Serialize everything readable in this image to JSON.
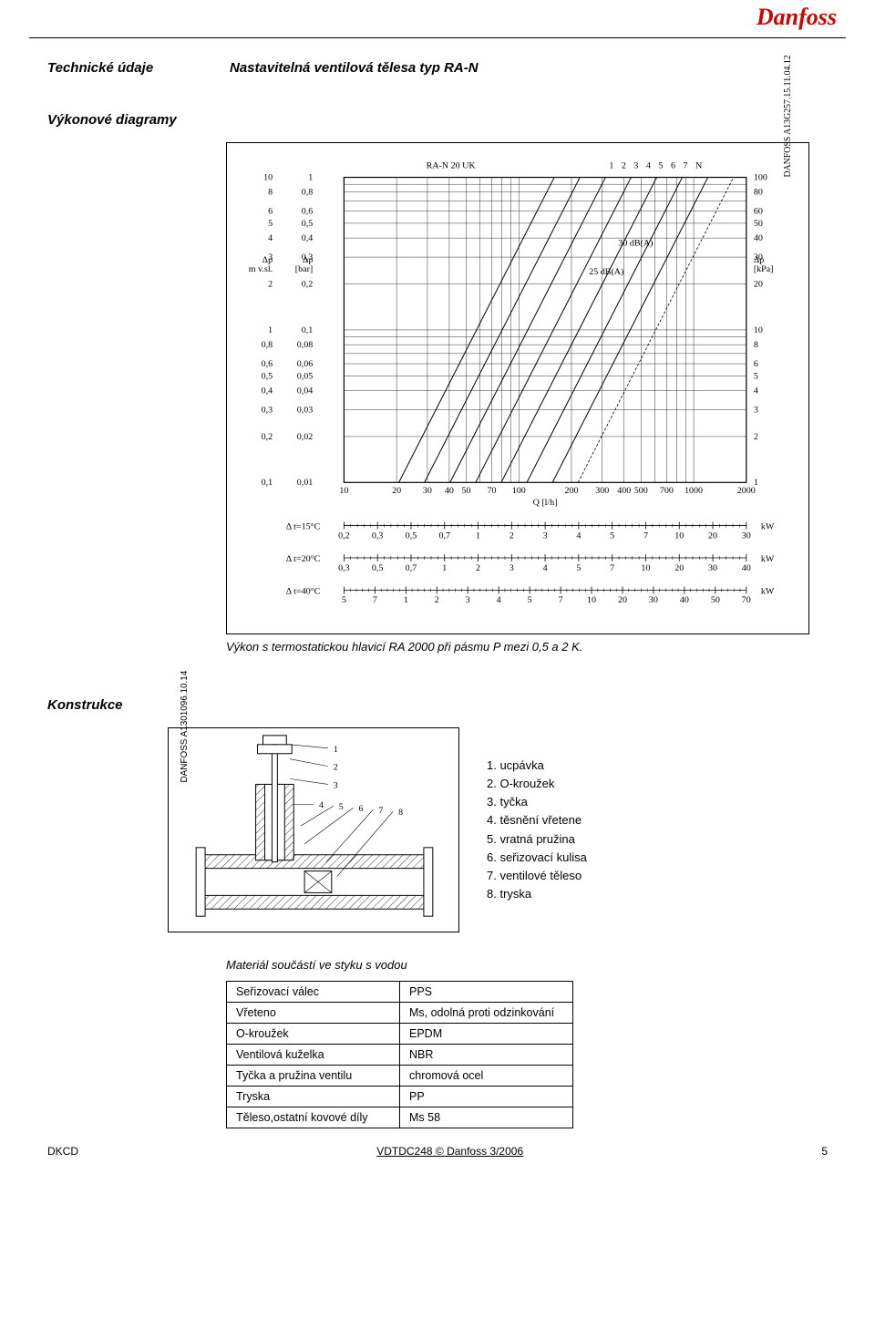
{
  "brand": "Danfoss",
  "header": {
    "left": "Technické údaje",
    "right": "Nastavitelná ventilová tělesa  typ RA-N"
  },
  "section1": {
    "title": "Výkonové diagramy",
    "caption": "Výkon s termostatickou hlavicí RA 2000 při pásmu P mezi 0,5 a 2 K."
  },
  "chart": {
    "ref_left": "DANFOSS\nA13G257.15.11.04.12",
    "title": "RA-N 20 UK",
    "top_scale_label": "1  2 3   4  5 6 7 N",
    "annotations": [
      "30 dB(A)",
      "25 dB(A)"
    ],
    "x_label": "Q  [l/h]",
    "y_labels": {
      "left_outer": "Δp\nm v.sl.",
      "left_inner": "Δp\n[bar]",
      "right": "Δp\n[kPa]"
    },
    "y_outer_ticks": [
      "10",
      "8",
      "6",
      "5",
      "4",
      "3",
      "2",
      "1",
      "0,8",
      "0,6",
      "0,5",
      "0,4",
      "0,3",
      "0,2",
      "0,1"
    ],
    "y_inner_ticks": [
      "1",
      "0,8",
      "0,6",
      "0,5",
      "0,4",
      "0,3",
      "0,2",
      "0,1",
      "0,08",
      "0,06",
      "0,05",
      "0,04",
      "0,03",
      "0,02",
      "0,01"
    ],
    "y_right_ticks": [
      "100",
      "80",
      "60",
      "50",
      "40",
      "30",
      "20",
      "10",
      "8",
      "6",
      "5",
      "4",
      "3",
      "2",
      "1"
    ],
    "x_ticks": [
      "10",
      "20",
      "30",
      "40",
      "50",
      "70",
      "100",
      "200",
      "300",
      "400",
      "500",
      "700",
      "1000",
      "2000"
    ],
    "rulers": [
      {
        "label": "Δ t=15°C",
        "ticks": [
          "0,2",
          "0,3",
          "0,5",
          "0,7",
          "1",
          "2",
          "3",
          "4",
          "5",
          "7",
          "10",
          "20",
          "30"
        ],
        "unit": "kW"
      },
      {
        "label": "Δ t=20°C",
        "ticks": [
          "0,3",
          "0,5",
          "0,7",
          "1",
          "2",
          "3",
          "4",
          "5",
          "7",
          "10",
          "20",
          "30",
          "40"
        ],
        "unit": "kW"
      },
      {
        "label": "Δ t=40°C",
        "ticks": [
          "5",
          "7",
          "1",
          "2",
          "3",
          "4",
          "5",
          "7",
          "10",
          "20",
          "30",
          "40",
          "50",
          "70"
        ],
        "unit": "kW"
      }
    ],
    "curve_count": 8,
    "line_color": "#000000"
  },
  "section2_title": "Konstrukce",
  "construction": {
    "ref": "DANFOSS\nA1301096.10.14",
    "callouts": [
      "1",
      "2",
      "3",
      "4",
      "5",
      "6",
      "7",
      "8"
    ],
    "legend": [
      "1.  ucpávka",
      "2.  O-kroužek",
      "3.  tyčka",
      "4.  těsnění vřetene",
      "5.  vratná pružina",
      "6.  seřizovací kulisa",
      "7.  ventilové těleso",
      "8.  tryska"
    ]
  },
  "materials": {
    "title": "Materiál součástí ve styku s vodou",
    "rows": [
      [
        "Seřizovací válec",
        "PPS"
      ],
      [
        "Vřeteno",
        "Ms, odolná proti odzinkování"
      ],
      [
        "O-kroužek",
        "EPDM"
      ],
      [
        "Ventilová kuželka",
        "NBR"
      ],
      [
        "Tyčka a pružina ventilu",
        "chromová ocel"
      ],
      [
        "Tryska",
        "PP"
      ],
      [
        "Těleso,ostatní kovové díly",
        "Ms 58"
      ]
    ]
  },
  "footer": {
    "left": "DKCD",
    "mid": "VDTDC248   © Danfoss  3/2006",
    "page": "5"
  }
}
